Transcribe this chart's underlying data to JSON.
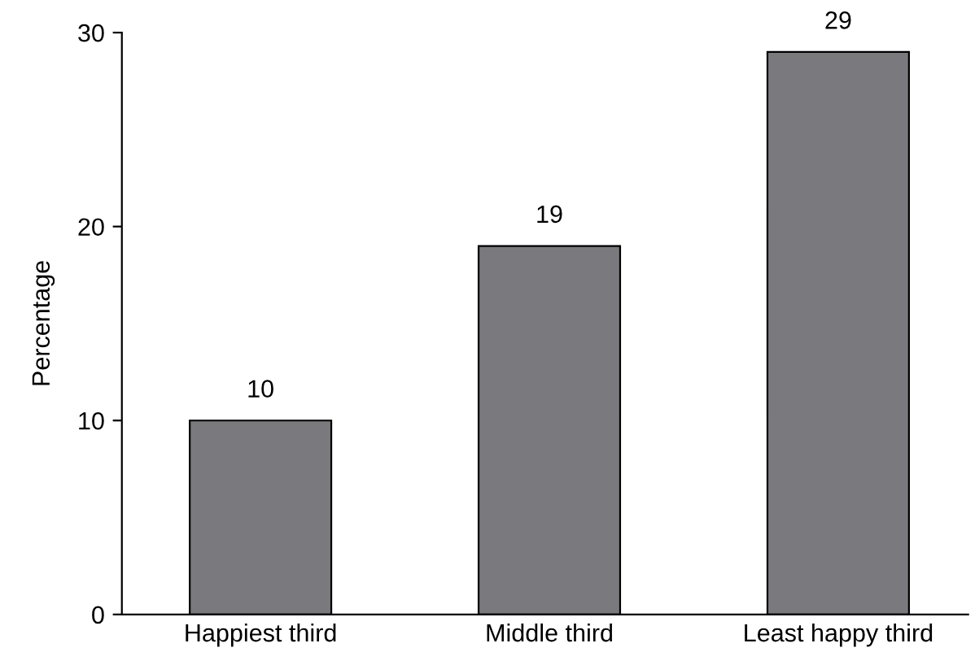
{
  "chart_data": {
    "type": "bar",
    "ylabel": "Percentage",
    "categories": [
      "Happiest third",
      "Middle third",
      "Least happy third"
    ],
    "values": [
      10,
      19,
      29
    ],
    "color": "#7a7a7e",
    "ylim": [
      0,
      30
    ],
    "yticks": [
      0,
      10,
      20,
      30
    ],
    "data_labels": true,
    "grid": false,
    "legend": false
  }
}
